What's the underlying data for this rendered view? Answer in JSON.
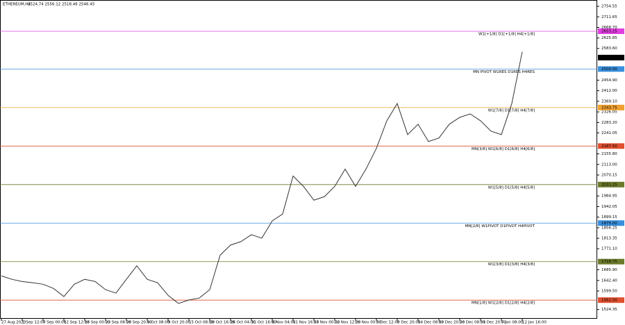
{
  "chart_data": {
    "type": "line",
    "title": "ETHEREUM,H4",
    "subtitle": "2524.74 2556.12 2518.46 2546.45",
    "categories": [
      "27 Aug 2023",
      null,
      "1 Sep 12:00",
      null,
      "7 Sep 00:00",
      null,
      "12 Sep 12:00",
      null,
      "18 Sep 00:00",
      null,
      "23 Sep 08:00",
      null,
      "28 Sep 20:00",
      null,
      "4 Oct 08:00",
      null,
      "9 Oct 20:00",
      null,
      "15 Oct 08:00",
      null,
      "20 Oct 16:00",
      null,
      "26 Oct 04:00",
      null,
      "31 Oct 16:00",
      null,
      "6 Nov 04:00",
      null,
      "11 Nov 16:00",
      null,
      "17 Nov 00:00",
      null,
      "22 Nov 12:00",
      null,
      "28 Nov 00:00",
      null,
      "3 Dec 12:00",
      null,
      "8 Dec 20:00",
      null,
      "14 Dec 08:00",
      null,
      "19 Dec 20:00",
      null,
      "26 Dec 08:00",
      null,
      "31 Dec 20:00",
      null,
      "7 Jan 08:00",
      null,
      "12 Jan 16:00"
    ],
    "series": [
      {
        "name": "ETHEREUM",
        "color": "#333333",
        "values": [
          1661,
          1647,
          1638,
          1633,
          1627,
          1610,
          1577,
          1627,
          1647,
          1638,
          1605,
          1591,
          1647,
          1702,
          1647,
          1633,
          1582,
          1549,
          1563,
          1571,
          1605,
          1745,
          1786,
          1800,
          1828,
          1814,
          1884,
          1912,
          2066,
          2024,
          1968,
          1982,
          2024,
          2094,
          2024,
          2094,
          2178,
          2290,
          2360,
          2234,
          2276,
          2206,
          2220,
          2276,
          2304,
          2318,
          2290,
          2248,
          2234,
          2360,
          2570
        ]
      }
    ],
    "last": {
      "value": 2546.45,
      "color": "#000000"
    },
    "levels": [
      {
        "label": "W1[+1/8] D1[+1/8] H4[+1/8]",
        "value": 2653.25,
        "color": "#e040e0"
      },
      {
        "label": "MN PIVOT W1RES D1RES H4RES",
        "value": 2500,
        "value_label": "2500.00",
        "color": "#3a8fdc"
      },
      {
        "label": "W1[7/8] D1[7/8] H4[7/8]",
        "value": 2343.75,
        "color": "#f0a030"
      },
      {
        "label": "MN[3/8] W1[6/8] D1[6/8] H4[6/8]",
        "value": 2187.5,
        "value_label": "2187.50",
        "color": "#e05030"
      },
      {
        "label": "W1[5/8] D1[5/8] H4[5/8]",
        "value": 2031.25,
        "color": "#6b7a2a"
      },
      {
        "label": "MN[2/8] W1PIVOT D1PIVOT H4PIVOT",
        "value": 1875,
        "value_label": "1875.00",
        "color": "#3a8fdc"
      },
      {
        "label": "W1[3/8] D1[3/8] H4[3/8]",
        "value": 1718.75,
        "color": "#6b7a2a"
      },
      {
        "label": "MN[1/8] W1[2/8] D1[2/8] H4[2/8]",
        "value": 1562.5,
        "value_label": "1562.50",
        "color": "#e05030"
      }
    ],
    "ylim": [
      1487,
      2780
    ],
    "yticks": [
      2754.55,
      2711.65,
      {
        "value": 2668.7,
        "label": "2668.70"
      },
      2625.85,
      {
        "value": 2583.6,
        "label": "2583.60"
      },
      {
        "value": 2454.9,
        "label": "2454.90"
      },
      {
        "value": 2412,
        "label": "2412.00"
      },
      {
        "value": 2369.1,
        "label": "2369.10"
      },
      2326.05,
      {
        "value": 2283.2,
        "label": "2283.20"
      },
      2241.05,
      {
        "value": 2155.8,
        "label": "2155.80"
      },
      {
        "value": 2113,
        "label": "2113.00"
      },
      2070.15,
      1984.95,
      1942.05,
      1899.15,
      1856.25,
      1813.35,
      {
        "value": 1771.1,
        "label": "1771.10"
      },
      {
        "value": 1685.9,
        "label": "1685.90"
      },
      {
        "value": 1642.4,
        "label": "1642.40"
      },
      {
        "value": 1599.5,
        "label": "1599.50"
      },
      1524.35
    ]
  }
}
